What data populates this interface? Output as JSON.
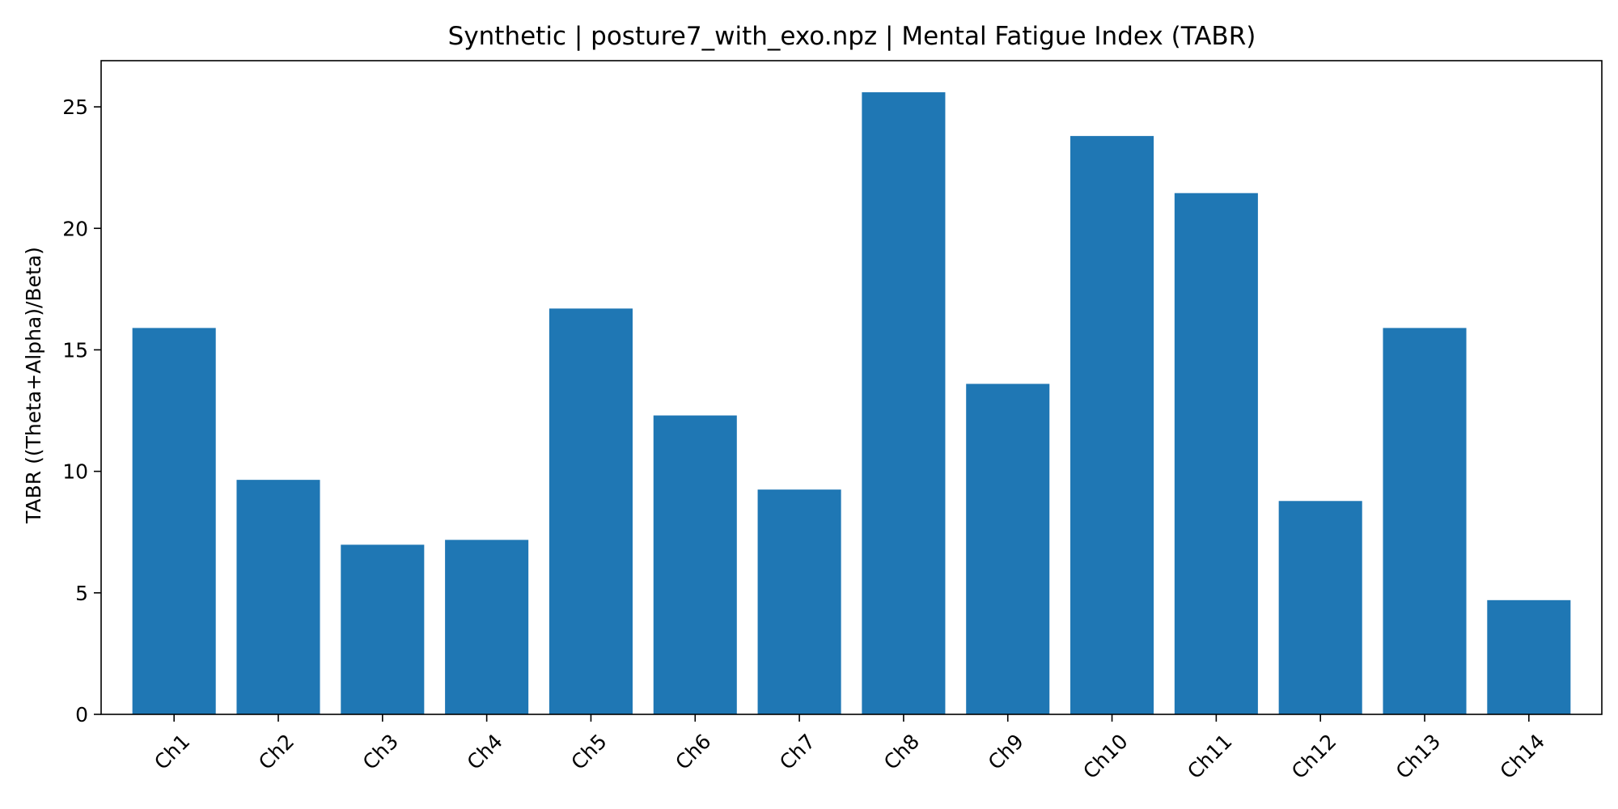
{
  "chart_data": {
    "type": "bar",
    "title": "Synthetic | posture7_with_exo.npz | Mental Fatigue Index (TABR)",
    "xlabel": "",
    "ylabel": "TABR ((Theta+Alpha)/Beta)",
    "categories": [
      "Ch1",
      "Ch2",
      "Ch3",
      "Ch4",
      "Ch5",
      "Ch6",
      "Ch7",
      "Ch8",
      "Ch9",
      "Ch10",
      "Ch11",
      "Ch12",
      "Ch13",
      "Ch14"
    ],
    "values": [
      15.9,
      9.65,
      6.98,
      7.18,
      16.7,
      12.3,
      9.25,
      25.6,
      13.6,
      23.8,
      21.45,
      8.78,
      15.9,
      4.7
    ],
    "ylim": [
      0,
      26.9
    ],
    "yticks": [
      0,
      5,
      10,
      15,
      20,
      25
    ],
    "bar_color": "#1f77b4",
    "grid": false,
    "legend": "none"
  }
}
